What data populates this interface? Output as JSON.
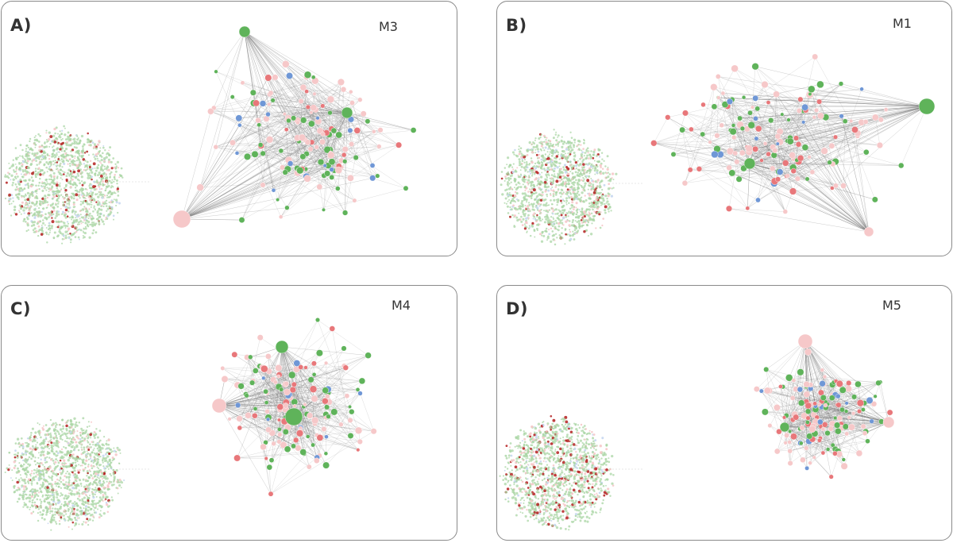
{
  "colors": {
    "up_regulated": "#e8777a",
    "up_light": "#f6c8c9",
    "down_green": "#5fb35a",
    "green_light": "#a9d6a4",
    "blue": "#6f97d6",
    "blue_light": "#c7d7f0",
    "dark_red": "#b41f1f",
    "edge": "#8e8e8e",
    "panel_border": "#8a8a8a"
  },
  "panels": [
    {
      "id": "A",
      "letter": "A)",
      "module": "M3",
      "hub_count": 3,
      "seed": 11,
      "cloud_red_density": 0.05
    },
    {
      "id": "B",
      "letter": "B)",
      "module": "M1",
      "hub_count": 3,
      "seed": 23,
      "cloud_red_density": 0.04
    },
    {
      "id": "C",
      "letter": "C)",
      "module": "M4",
      "hub_count": 3,
      "seed": 37,
      "cloud_red_density": 0.04
    },
    {
      "id": "D",
      "letter": "D)",
      "module": "M5",
      "hub_count": 3,
      "seed": 53,
      "cloud_red_density": 0.09
    }
  ]
}
